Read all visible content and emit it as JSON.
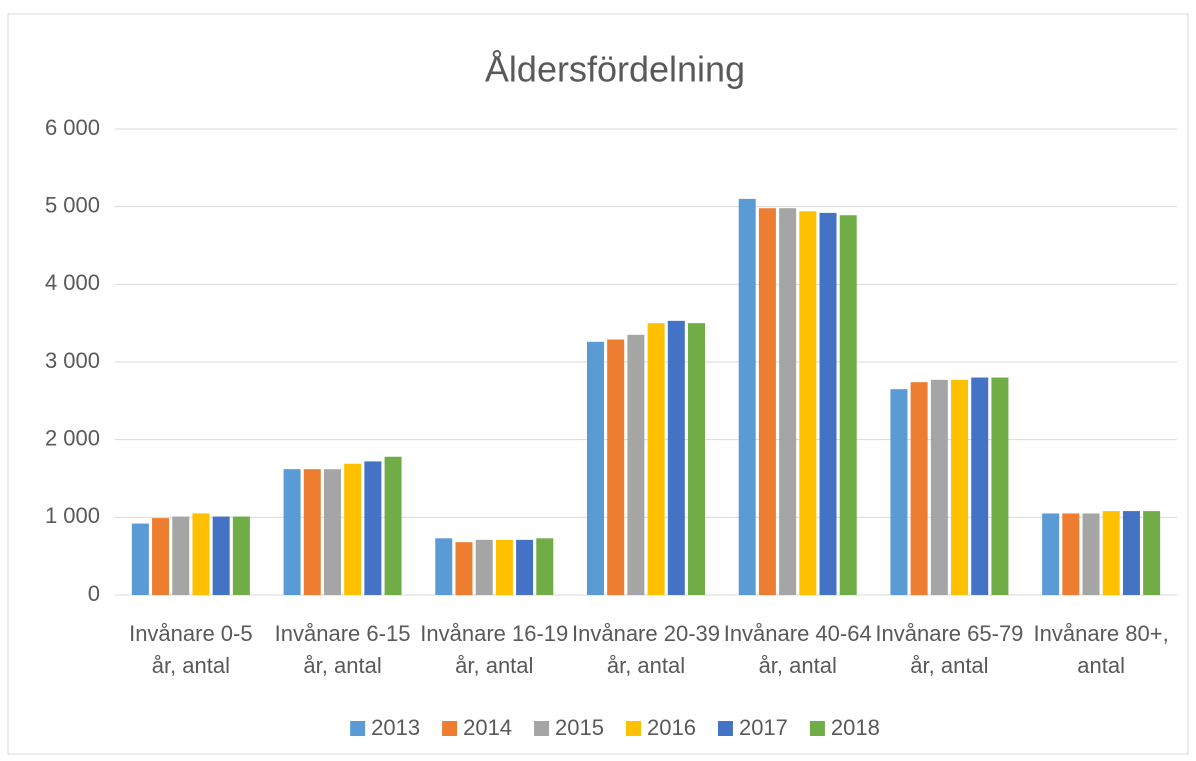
{
  "chart_data": {
    "type": "bar",
    "title": "Åldersfördelning",
    "categories": [
      "Invånare 0-5 år, antal",
      "Invånare 6-15 år, antal",
      "Invånare 16-19 år, antal",
      "Invånare 20-39 år, antal",
      "Invånare 40-64 år, antal",
      "Invånare 65-79 år, antal",
      "Invånare 80+, antal"
    ],
    "series": [
      {
        "name": "2013",
        "color": "#5b9bd5",
        "values": [
          920,
          1620,
          730,
          3260,
          5100,
          2650,
          1050
        ]
      },
      {
        "name": "2014",
        "color": "#ed7d31",
        "values": [
          990,
          1620,
          680,
          3290,
          4980,
          2740,
          1050
        ]
      },
      {
        "name": "2015",
        "color": "#a5a5a5",
        "values": [
          1010,
          1620,
          710,
          3350,
          4980,
          2770,
          1050
        ]
      },
      {
        "name": "2016",
        "color": "#ffc000",
        "values": [
          1050,
          1690,
          710,
          3500,
          4940,
          2770,
          1080
        ]
      },
      {
        "name": "2017",
        "color": "#4472c4",
        "values": [
          1010,
          1720,
          710,
          3530,
          4920,
          2800,
          1080
        ]
      },
      {
        "name": "2018",
        "color": "#70ad47",
        "values": [
          1010,
          1780,
          730,
          3500,
          4890,
          2800,
          1080
        ]
      }
    ],
    "ylim": [
      0,
      6000
    ],
    "yticks": [
      0,
      {
        "value": 1000,
        "label": "1 000"
      },
      {
        "value": 2000,
        "label": "2 000"
      },
      {
        "value": 3000,
        "label": "3 000"
      },
      {
        "value": 4000,
        "label": "4 000"
      },
      {
        "value": 5000,
        "label": "5 000"
      },
      {
        "value": 6000,
        "label": "6 000"
      }
    ],
    "grid": true,
    "legend": "bottom"
  }
}
